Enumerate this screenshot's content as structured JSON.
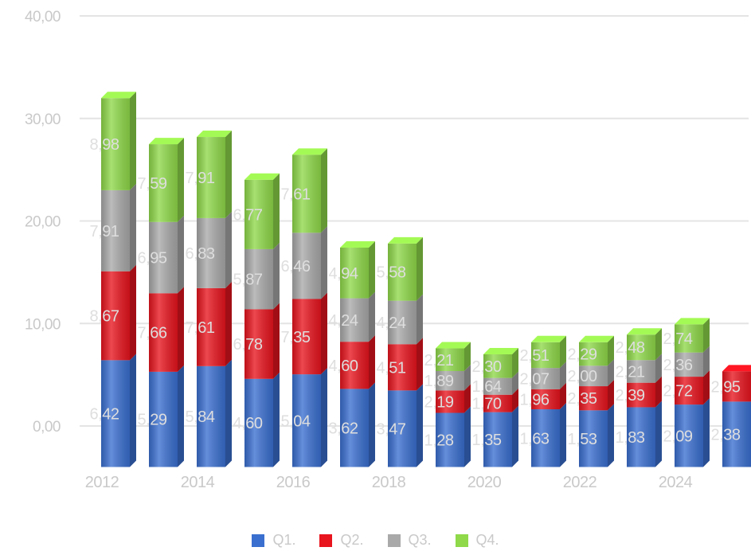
{
  "chart_data": {
    "type": "bar",
    "stacked": true,
    "categories": [
      "2012",
      "2013",
      "2014",
      "2015",
      "2016",
      "2017",
      "2018",
      "2019",
      "2020",
      "2021",
      "2022",
      "2023",
      "2024",
      "2025"
    ],
    "x_tick_labels": [
      "2012",
      "",
      "2014",
      "",
      "2016",
      "",
      "2018",
      "",
      "2020",
      "",
      "2022",
      "",
      "2024",
      ""
    ],
    "series": [
      {
        "name": "Q1.",
        "color": "#3a6fd0",
        "values": [
          "6,42",
          "5,29",
          "5,84",
          "4,60",
          "5,04",
          "3,62",
          "3,47",
          "1,28",
          "1,35",
          "1,63",
          "1,53",
          "1,83",
          "2,09",
          "2,38"
        ]
      },
      {
        "name": "Q2.",
        "color": "#e8141e",
        "values": [
          "8,67",
          "7,66",
          "7,61",
          "6,78",
          "7,35",
          "4,60",
          "4,51",
          "2,19",
          "1,70",
          "1,96",
          "2,35",
          "2,39",
          "2,72",
          "2,95"
        ]
      },
      {
        "name": "Q3.",
        "color": "#a9a9a9",
        "values": [
          "7,91",
          "6,95",
          "6,83",
          "5,87",
          "6,46",
          "4,24",
          "4,24",
          "1,89",
          "1,64",
          "2,07",
          "2,00",
          "2,21",
          "2,36",
          ""
        ]
      },
      {
        "name": "Q4.",
        "color": "#8fd94a",
        "values": [
          "8,98",
          "7,59",
          "7,91",
          "6,77",
          "7,61",
          "4,94",
          "5,58",
          "2,21",
          "2,30",
          "2,51",
          "2,29",
          "2,48",
          "2,74",
          ""
        ]
      }
    ],
    "y_tick_labels": [
      "0,00",
      "10,00",
      "20,00",
      "30,00",
      "40,00"
    ],
    "y_ticks": [
      0,
      10,
      20,
      30,
      40
    ],
    "ylim": [
      -4,
      40
    ],
    "grid": true,
    "legend_position": "bottom"
  }
}
